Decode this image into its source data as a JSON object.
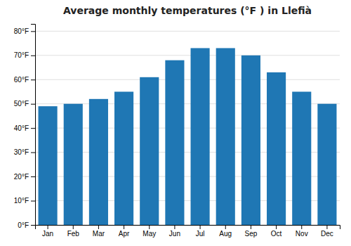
{
  "chart_data": {
    "type": "bar",
    "title": "Average monthly temperatures (°F ) in Llefià",
    "categories": [
      "Jan",
      "Feb",
      "Mar",
      "Apr",
      "May",
      "Jun",
      "Jul",
      "Aug",
      "Sep",
      "Oct",
      "Nov",
      "Dec"
    ],
    "values": [
      49,
      50,
      52,
      55,
      61,
      68,
      73,
      73,
      70,
      63,
      55,
      50
    ],
    "ylim": [
      0,
      83
    ],
    "yticks": [
      {
        "value": 0,
        "label": "0°F"
      },
      {
        "value": 10,
        "label": "10°F"
      },
      {
        "value": 20,
        "label": "20°F"
      },
      {
        "value": 30,
        "label": "30°F"
      },
      {
        "value": 40,
        "label": "40°F"
      },
      {
        "value": 50,
        "label": "50°F"
      },
      {
        "value": 60,
        "label": "60°F"
      },
      {
        "value": 70,
        "label": "70°F"
      },
      {
        "value": 80,
        "label": "80°F"
      }
    ],
    "grid": true
  }
}
